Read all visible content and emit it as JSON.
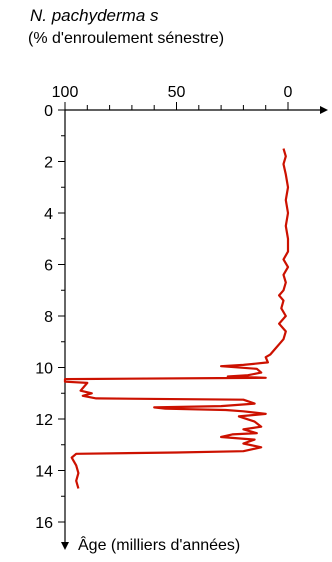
{
  "chart_data": {
    "type": "line",
    "title": "N. pachyderma s",
    "subtitle": "(% d'enroulement sénestre)",
    "xlabel": "",
    "ylabel": "Âge (milliers d'années)",
    "x_axis_position": "top",
    "x_reversed": true,
    "xlim": [
      100,
      0
    ],
    "ylim": [
      0,
      16.5
    ],
    "x_ticks": [
      100,
      50,
      0
    ],
    "y_ticks": [
      0,
      2,
      4,
      6,
      8,
      10,
      12,
      14,
      16
    ],
    "grid": false,
    "line_color": "#cc1100",
    "series": [
      {
        "name": "",
        "points": [
          {
            "x": 2,
            "y": 1.5
          },
          {
            "x": 1,
            "y": 1.8
          },
          {
            "x": 2,
            "y": 2.1
          },
          {
            "x": 1,
            "y": 2.5
          },
          {
            "x": 0,
            "y": 3.0
          },
          {
            "x": 1,
            "y": 3.5
          },
          {
            "x": 0,
            "y": 4.0
          },
          {
            "x": 1,
            "y": 4.5
          },
          {
            "x": 0,
            "y": 5.0
          },
          {
            "x": 0,
            "y": 5.5
          },
          {
            "x": 2,
            "y": 5.8
          },
          {
            "x": 0,
            "y": 6.1
          },
          {
            "x": 2,
            "y": 6.4
          },
          {
            "x": 1,
            "y": 6.7
          },
          {
            "x": 2,
            "y": 7.0
          },
          {
            "x": 4,
            "y": 7.2
          },
          {
            "x": 2,
            "y": 7.4
          },
          {
            "x": 3,
            "y": 7.7
          },
          {
            "x": 1,
            "y": 8.0
          },
          {
            "x": 4,
            "y": 8.3
          },
          {
            "x": 1,
            "y": 8.6
          },
          {
            "x": 2,
            "y": 8.9
          },
          {
            "x": 4,
            "y": 9.1
          },
          {
            "x": 6,
            "y": 9.3
          },
          {
            "x": 8,
            "y": 9.5
          },
          {
            "x": 10,
            "y": 9.6
          },
          {
            "x": 9,
            "y": 9.8
          },
          {
            "x": 20,
            "y": 9.9
          },
          {
            "x": 30,
            "y": 9.95
          },
          {
            "x": 14,
            "y": 10.05
          },
          {
            "x": 12,
            "y": 10.2
          },
          {
            "x": 18,
            "y": 10.3
          },
          {
            "x": 27,
            "y": 10.35
          },
          {
            "x": 10,
            "y": 10.4
          },
          {
            "x": 100,
            "y": 10.45
          },
          {
            "x": 100,
            "y": 10.55
          },
          {
            "x": 90,
            "y": 10.6
          },
          {
            "x": 93,
            "y": 10.9
          },
          {
            "x": 88,
            "y": 11.0
          },
          {
            "x": 92,
            "y": 11.1
          },
          {
            "x": 86,
            "y": 11.2
          },
          {
            "x": 20,
            "y": 11.25
          },
          {
            "x": 15,
            "y": 11.4
          },
          {
            "x": 30,
            "y": 11.5
          },
          {
            "x": 60,
            "y": 11.55
          },
          {
            "x": 55,
            "y": 11.6
          },
          {
            "x": 28,
            "y": 11.65
          },
          {
            "x": 20,
            "y": 11.7
          },
          {
            "x": 10,
            "y": 11.8
          },
          {
            "x": 22,
            "y": 11.9
          },
          {
            "x": 15,
            "y": 12.1
          },
          {
            "x": 12,
            "y": 12.3
          },
          {
            "x": 20,
            "y": 12.4
          },
          {
            "x": 14,
            "y": 12.55
          },
          {
            "x": 25,
            "y": 12.6
          },
          {
            "x": 30,
            "y": 12.7
          },
          {
            "x": 15,
            "y": 12.8
          },
          {
            "x": 20,
            "y": 12.95
          },
          {
            "x": 12,
            "y": 13.1
          },
          {
            "x": 20,
            "y": 13.25
          },
          {
            "x": 50,
            "y": 13.3
          },
          {
            "x": 95,
            "y": 13.35
          },
          {
            "x": 97,
            "y": 13.5
          },
          {
            "x": 95,
            "y": 13.8
          },
          {
            "x": 94,
            "y": 14.1
          },
          {
            "x": 95,
            "y": 14.4
          },
          {
            "x": 94,
            "y": 14.7
          }
        ]
      }
    ]
  }
}
